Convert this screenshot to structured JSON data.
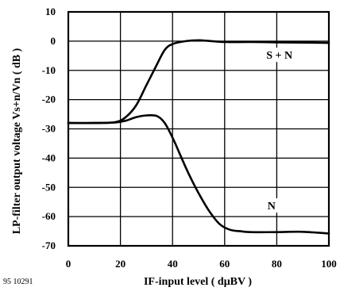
{
  "chart_data": {
    "type": "line",
    "xlabel": "IF-input level ( dμBV )",
    "ylabel": "LP-filter output voltage Vs+n/Vn ( dB )",
    "xlim": [
      0,
      100
    ],
    "ylim": [
      -70,
      10
    ],
    "x_ticks": [
      0,
      20,
      40,
      60,
      80,
      100
    ],
    "y_ticks": [
      10,
      0,
      -10,
      -20,
      -30,
      -40,
      -50,
      -60,
      -70
    ],
    "grid": true,
    "series": [
      {
        "name": "S + N",
        "x": [
          0,
          10,
          18,
          22,
          26,
          30,
          34,
          37,
          40,
          45,
          50,
          55,
          60,
          70,
          80,
          90,
          100
        ],
        "y": [
          -28,
          -28,
          -27.7,
          -26,
          -22,
          -15,
          -8,
          -3,
          -1,
          0,
          0.3,
          0,
          -0.3,
          -0.3,
          -0.4,
          -0.5,
          -0.6
        ]
      },
      {
        "name": "N",
        "x": [
          0,
          10,
          18,
          22,
          26,
          30,
          34,
          37,
          40,
          43,
          46,
          50,
          54,
          58,
          62,
          66,
          70,
          80,
          90,
          100
        ],
        "y": [
          -28,
          -28,
          -27.8,
          -27.2,
          -26,
          -25.4,
          -25.6,
          -28,
          -33,
          -39,
          -45,
          -52,
          -58,
          -62.5,
          -64.5,
          -65,
          -65.3,
          -65.3,
          -65.2,
          -65.8
        ]
      }
    ],
    "annotations": [
      {
        "text": "S + N",
        "x": 81,
        "y": -5.5
      },
      {
        "text": "N",
        "x": 78,
        "y": -57
      }
    ],
    "figure_id": "95 10291"
  }
}
